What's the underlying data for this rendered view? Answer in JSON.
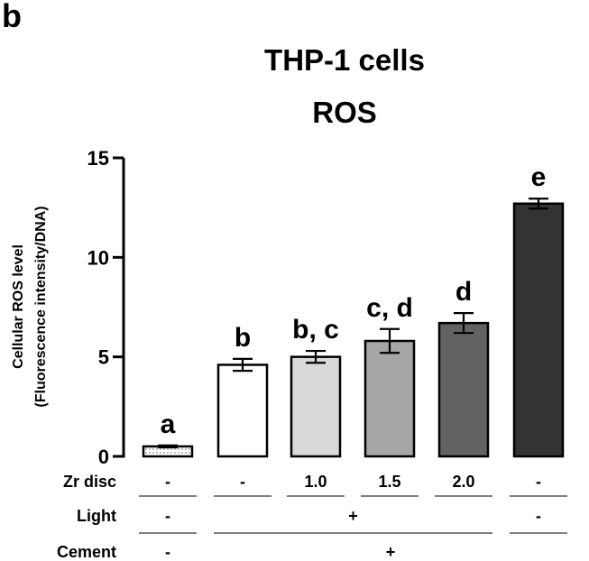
{
  "panel_label": "b",
  "chart_data": {
    "type": "bar",
    "title": "THP-1 cells",
    "subtitle": "ROS",
    "ylabel_line1": "Cellular ROS level",
    "ylabel_line2": "(Fluorescence intensity/DNA)",
    "ylim": [
      0,
      15
    ],
    "yticks": [
      0,
      5,
      10,
      15
    ],
    "grid": false,
    "values": [
      0.5,
      4.6,
      5.0,
      5.8,
      6.7,
      12.7
    ],
    "errors": [
      0.05,
      0.3,
      0.3,
      0.6,
      0.5,
      0.25
    ],
    "letters": [
      "a",
      "b",
      "b, c",
      "c, d",
      "d",
      "e"
    ],
    "colors": [
      "#f2f2f2",
      "#ffffff",
      "#d9d9d9",
      "#a6a6a6",
      "#636363",
      "#333333"
    ],
    "first_bar_pattern": "dotted"
  },
  "conditions": [
    {
      "label": "Zr disc",
      "entries": [
        {
          "text": "-",
          "bars": [
            0,
            0
          ]
        },
        {
          "text": "-",
          "bars": [
            1,
            1
          ]
        },
        {
          "text": "1.0",
          "bars": [
            2,
            2
          ]
        },
        {
          "text": "1.5",
          "bars": [
            3,
            3
          ]
        },
        {
          "text": "2.0",
          "bars": [
            4,
            4
          ]
        },
        {
          "text": "-",
          "bars": [
            5,
            5
          ]
        }
      ]
    },
    {
      "label": "Light",
      "entries": [
        {
          "text": "-",
          "bars": [
            0,
            0
          ]
        },
        {
          "text": "+",
          "bars": [
            1,
            4
          ]
        },
        {
          "text": "-",
          "bars": [
            5,
            5
          ]
        }
      ]
    },
    {
      "label": "Cement",
      "entries": [
        {
          "text": "-",
          "bars": [
            0,
            0
          ]
        },
        {
          "text": "+",
          "bars": [
            1,
            5
          ]
        }
      ]
    }
  ]
}
